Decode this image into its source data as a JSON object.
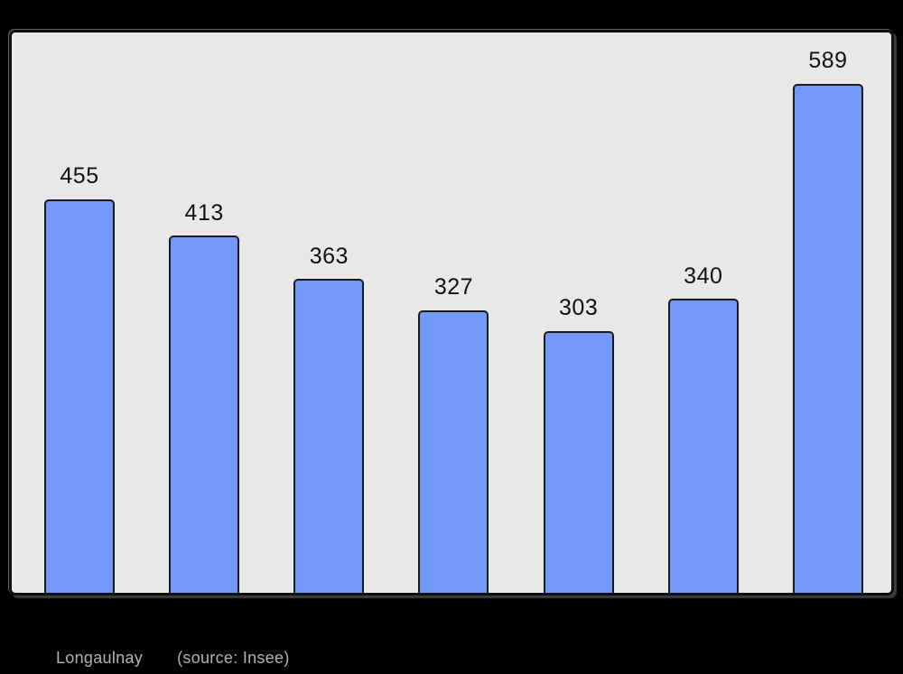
{
  "page": {
    "background_color": "#000000"
  },
  "chart_data": {
    "type": "bar",
    "values": [
      455,
      413,
      363,
      327,
      303,
      340,
      589
    ],
    "value_labels": [
      "455",
      "413",
      "363",
      "327",
      "303",
      "340",
      "589"
    ],
    "title": "",
    "xlabel": "",
    "ylabel": "",
    "ylim": [
      0,
      648
    ],
    "grid": false,
    "legend": false,
    "axis_tick_labels_shown": false,
    "value_labels_shown": true,
    "bar_fill_color": "#7399f8",
    "bar_border_color": "#1b1b1b",
    "plot_background_color": "#e8e8e8",
    "plot_border_color": "#0f0f0f",
    "value_label_color": "#111111"
  },
  "caption": {
    "place": "Longaulnay",
    "source": "(source: Insee)",
    "text_color": "#b2b2b2"
  }
}
